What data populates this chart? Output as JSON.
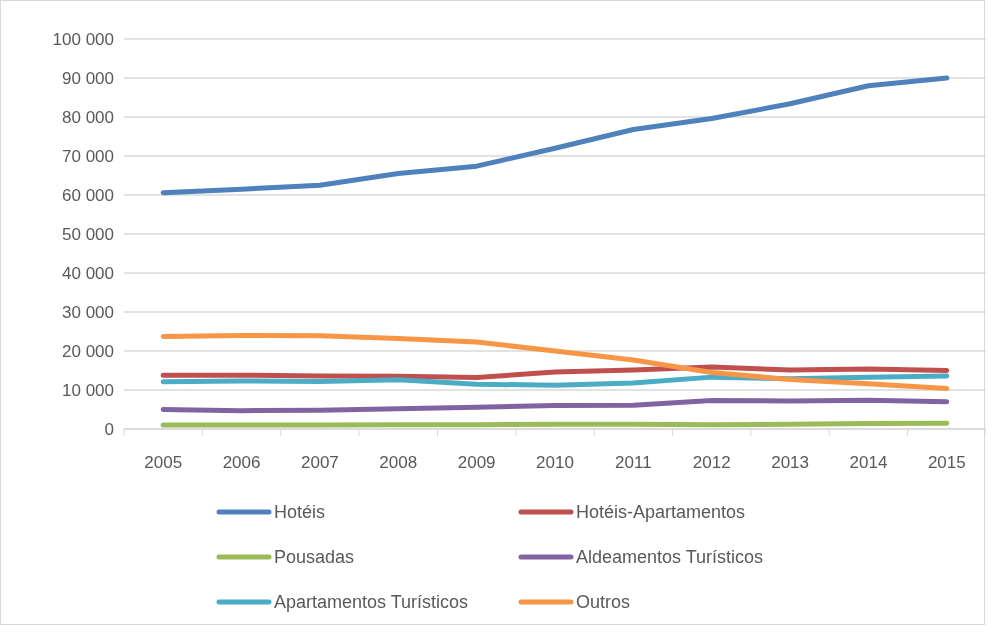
{
  "chart_data": {
    "type": "line",
    "categories": [
      "2005",
      "2006",
      "2007",
      "2008",
      "2009",
      "2010",
      "2011",
      "2012",
      "2013",
      "2014",
      "2015"
    ],
    "series": [
      {
        "name": "Hotéis",
        "color": "#4f81bd",
        "values": [
          60600,
          61500,
          62500,
          65500,
          67400,
          72000,
          76800,
          79600,
          83400,
          88000,
          90000
        ]
      },
      {
        "name": "Hotéis-Apartamentos",
        "color": "#c0504d",
        "values": [
          13800,
          13800,
          13600,
          13500,
          13200,
          14600,
          15100,
          15900,
          15100,
          15400,
          15000
        ]
      },
      {
        "name": "Pousadas",
        "color": "#9bbb59",
        "values": [
          1000,
          1000,
          1000,
          1100,
          1100,
          1200,
          1200,
          1100,
          1200,
          1400,
          1500
        ]
      },
      {
        "name": "Aldeamentos Turísticos",
        "color": "#8064a2",
        "values": [
          5000,
          4700,
          4800,
          5200,
          5600,
          6000,
          6100,
          7300,
          7200,
          7400,
          7000
        ]
      },
      {
        "name": "Apartamentos Turísticos",
        "color": "#4bacc6",
        "values": [
          12100,
          12300,
          12200,
          12600,
          11500,
          11200,
          11800,
          13300,
          12900,
          13300,
          13600
        ]
      },
      {
        "name": "Outros",
        "color": "#f79646",
        "values": [
          23700,
          24000,
          23900,
          23200,
          22300,
          20000,
          17700,
          14500,
          12700,
          11600,
          10400
        ]
      }
    ],
    "ylim": [
      0,
      100000
    ],
    "yticks": [
      0,
      {
        "value": 10000,
        "label": "10 000"
      },
      {
        "value": 20000,
        "label": "20 000"
      },
      {
        "value": 30000,
        "label": "30 000"
      },
      {
        "value": 40000,
        "label": "40 000"
      },
      {
        "value": 50000,
        "label": "50 000"
      },
      {
        "value": 60000,
        "label": "60 000"
      },
      {
        "value": 70000,
        "label": "70 000"
      },
      {
        "value": 80000,
        "label": "80 000"
      },
      {
        "value": 90000,
        "label": "90 000"
      },
      {
        "value": 100000,
        "label": "100 000"
      }
    ],
    "grid": "y",
    "legend": "bottom",
    "marker": "none",
    "line_style": "solid"
  }
}
